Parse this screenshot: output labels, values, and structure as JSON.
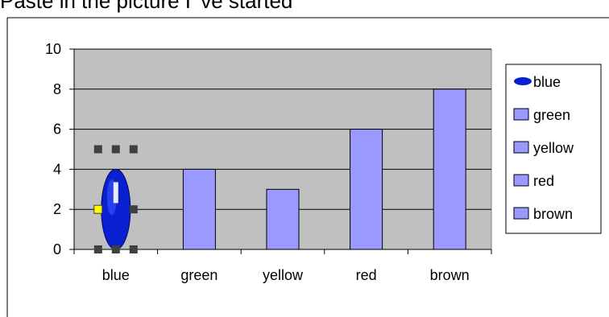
{
  "header": {
    "caption": "Paste in the picture I 've started"
  },
  "chart_data": {
    "type": "bar",
    "categories": [
      "blue",
      "green",
      "yellow",
      "red",
      "brown"
    ],
    "values": [
      4,
      4,
      3,
      6,
      8
    ],
    "ylim": [
      0,
      10
    ],
    "yticks": [
      0,
      2,
      4,
      6,
      8,
      10
    ],
    "grid": true,
    "legend_placement": "right",
    "legend": [
      "blue",
      "green",
      "yellow",
      "red",
      "brown"
    ],
    "colors": {
      "bar": "#9999ff",
      "plot_bg": "#c0c0c0",
      "picture_bar": "#0a1fd0",
      "handle": "#404040"
    },
    "picture_bar": {
      "category": "blue",
      "icon": "blue-oval-picture-icon",
      "selected": true
    }
  }
}
